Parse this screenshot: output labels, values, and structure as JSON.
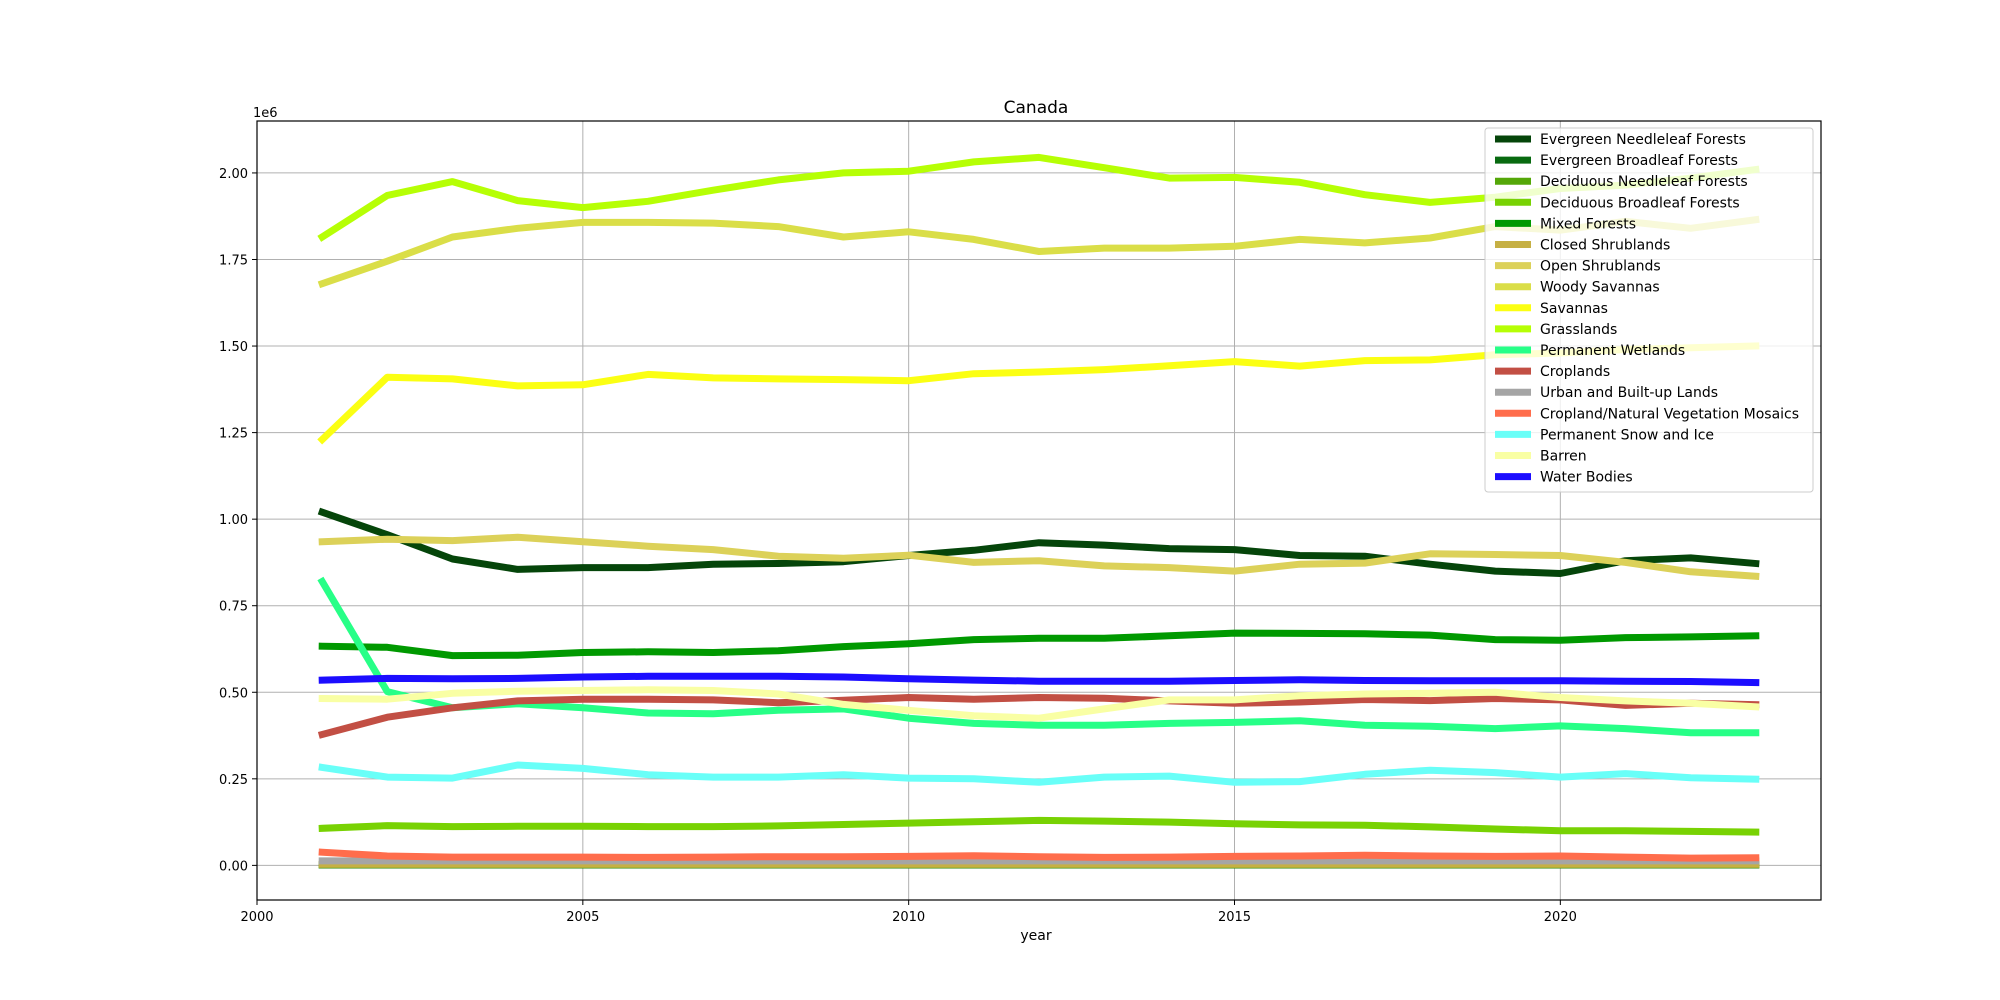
{
  "chart_data": {
    "type": "line",
    "title": "Canada",
    "xlabel": "year",
    "ylabel": "",
    "y_offset_label": "1e6",
    "xlim": [
      2000,
      2024
    ],
    "ylim": [
      -100000,
      2150000
    ],
    "x_ticks": [
      2000,
      2005,
      2010,
      2015,
      2020
    ],
    "y_ticks": [
      0,
      250000,
      500000,
      750000,
      1000000,
      1250000,
      1500000,
      1750000,
      2000000
    ],
    "y_tick_labels": [
      "0.00",
      "0.25",
      "0.50",
      "0.75",
      "1.00",
      "1.25",
      "1.50",
      "1.75",
      "2.00"
    ],
    "grid": true,
    "legend_position": "top-right",
    "x": [
      2001,
      2002,
      2003,
      2004,
      2005,
      2006,
      2007,
      2008,
      2009,
      2010,
      2011,
      2012,
      2013,
      2014,
      2015,
      2016,
      2017,
      2018,
      2019,
      2020,
      2021,
      2022,
      2023
    ],
    "series": [
      {
        "name": "Evergreen Needleleaf Forests",
        "color": "#05450a",
        "values": [
          1020000,
          955000,
          885000,
          855000,
          860000,
          860000,
          870000,
          872000,
          877000,
          895000,
          910000,
          932000,
          925000,
          915000,
          912000,
          895000,
          893000,
          870000,
          850000,
          843000,
          880000,
          888000,
          872000
        ]
      },
      {
        "name": "Evergreen Broadleaf Forests",
        "color": "#086a10",
        "values": [
          1000,
          1000,
          1000,
          1000,
          1000,
          1000,
          1000,
          1000,
          1000,
          1000,
          1000,
          1000,
          1000,
          1000,
          1000,
          1000,
          1000,
          1000,
          1000,
          1000,
          1000,
          1000,
          1000
        ]
      },
      {
        "name": "Deciduous Needleleaf Forests",
        "color": "#54a708",
        "values": [
          2000,
          2000,
          2000,
          2000,
          2000,
          2000,
          2000,
          2000,
          2000,
          2000,
          2000,
          2000,
          2000,
          2000,
          2000,
          2000,
          2000,
          2000,
          2000,
          2000,
          2000,
          2000,
          2000
        ]
      },
      {
        "name": "Deciduous Broadleaf Forests",
        "color": "#78d203",
        "values": [
          107000,
          115000,
          112000,
          113000,
          113000,
          112000,
          112000,
          114000,
          118000,
          122000,
          126000,
          130000,
          128000,
          125000,
          120000,
          117000,
          116000,
          111000,
          105000,
          100000,
          100000,
          98000,
          96000
        ]
      },
      {
        "name": "Mixed Forests",
        "color": "#009900",
        "values": [
          633000,
          630000,
          606000,
          607000,
          615000,
          617000,
          615000,
          620000,
          632000,
          640000,
          652000,
          656000,
          656000,
          663000,
          671000,
          670000,
          669000,
          665000,
          652000,
          650000,
          658000,
          660000,
          663000
        ]
      },
      {
        "name": "Closed Shrublands",
        "color": "#c6b044",
        "values": [
          3000,
          3000,
          3000,
          3000,
          3000,
          3000,
          3000,
          3000,
          3000,
          3000,
          3000,
          3000,
          3000,
          3000,
          3000,
          3000,
          3000,
          3000,
          3000,
          3000,
          3000,
          3000,
          3000
        ]
      },
      {
        "name": "Open Shrublands",
        "color": "#dcd159",
        "values": [
          935000,
          942000,
          938000,
          948000,
          935000,
          922000,
          912000,
          893000,
          887000,
          896000,
          875000,
          880000,
          865000,
          860000,
          850000,
          870000,
          873000,
          900000,
          898000,
          895000,
          875000,
          848000,
          835000
        ]
      },
      {
        "name": "Woody Savannas",
        "color": "#dade48",
        "values": [
          1680000,
          1745000,
          1815000,
          1840000,
          1857000,
          1857000,
          1855000,
          1845000,
          1815000,
          1830000,
          1808000,
          1773000,
          1783000,
          1783000,
          1788000,
          1808000,
          1798000,
          1812000,
          1845000,
          1835000,
          1860000,
          1840000,
          1865000
        ]
      },
      {
        "name": "Savannas",
        "color": "#fbff13",
        "values": [
          1230000,
          1410000,
          1405000,
          1385000,
          1388000,
          1418000,
          1408000,
          1405000,
          1403000,
          1400000,
          1420000,
          1425000,
          1432000,
          1443000,
          1455000,
          1442000,
          1458000,
          1460000,
          1475000,
          1480000,
          1490000,
          1495000,
          1500000
        ]
      },
      {
        "name": "Grasslands",
        "color": "#b6ff05",
        "values": [
          1815000,
          1935000,
          1975000,
          1920000,
          1900000,
          1918000,
          1950000,
          1980000,
          2000000,
          2005000,
          2032000,
          2045000,
          2015000,
          1985000,
          1987000,
          1973000,
          1937000,
          1915000,
          1930000,
          1955000,
          1965000,
          1985000,
          2010000
        ]
      },
      {
        "name": "Permanent Wetlands",
        "color": "#27ff87",
        "values": [
          820000,
          502000,
          455000,
          467000,
          455000,
          440000,
          438000,
          448000,
          452000,
          425000,
          410000,
          405000,
          405000,
          410000,
          413000,
          418000,
          405000,
          402000,
          395000,
          403000,
          395000,
          383000,
          383000
        ]
      },
      {
        "name": "Croplands",
        "color": "#c24f44",
        "values": [
          378000,
          428000,
          455000,
          475000,
          480000,
          480000,
          478000,
          470000,
          477000,
          485000,
          480000,
          485000,
          483000,
          475000,
          468000,
          472000,
          479000,
          476000,
          482000,
          478000,
          462000,
          468000,
          464000
        ]
      },
      {
        "name": "Urban and Built-up Lands",
        "color": "#a5a5a5",
        "values": [
          13000,
          13000,
          13000,
          13000,
          13000,
          13000,
          13000,
          13000,
          13000,
          13000,
          13000,
          13000,
          13000,
          13000,
          13000,
          13000,
          13000,
          13000,
          13000,
          13000,
          13000,
          13000,
          13000
        ]
      },
      {
        "name": "Cropland/Natural Vegetation Mosaics",
        "color": "#ff6d4c",
        "values": [
          38000,
          27000,
          24000,
          24000,
          24000,
          23000,
          24000,
          25000,
          25000,
          26000,
          28000,
          25000,
          23000,
          24000,
          26000,
          27000,
          29000,
          27000,
          26000,
          27000,
          24000,
          21000,
          22000
        ]
      },
      {
        "name": "Permanent Snow and Ice",
        "color": "#69fff8",
        "values": [
          283000,
          255000,
          252000,
          290000,
          280000,
          262000,
          255000,
          255000,
          262000,
          252000,
          250000,
          240000,
          255000,
          258000,
          240000,
          242000,
          263000,
          275000,
          268000,
          255000,
          265000,
          253000,
          249000
        ]
      },
      {
        "name": "Barren",
        "color": "#f9ffa4",
        "values": [
          482000,
          480000,
          497000,
          503000,
          505000,
          507000,
          505000,
          495000,
          465000,
          448000,
          432000,
          425000,
          452000,
          478000,
          478000,
          490000,
          495000,
          497000,
          500000,
          485000,
          475000,
          468000,
          458000
        ]
      },
      {
        "name": "Water Bodies",
        "color": "#1c0dff",
        "values": [
          535000,
          540000,
          539000,
          540000,
          544000,
          546000,
          546000,
          546000,
          544000,
          539000,
          535000,
          532000,
          532000,
          532000,
          534000,
          536000,
          534000,
          533000,
          533000,
          533000,
          532000,
          531000,
          528000
        ]
      }
    ]
  }
}
